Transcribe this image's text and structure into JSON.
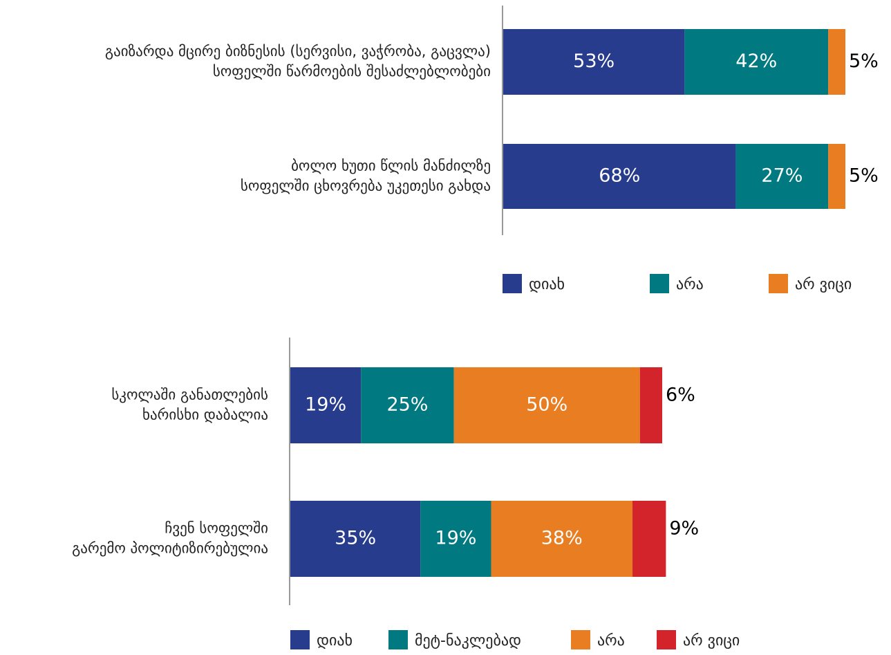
{
  "chart_data": [
    {
      "type": "stacked_bar_horizontal",
      "categories": [
        [
          "გაიზარდა მცირე ბიზნესის (სერვისი, ვაჭრობა, გაცვლა)",
          "სოფელში წარმოების შესაძლებლობები"
        ],
        [
          "ბოლო ხუთი წლის მანძილზე",
          "სოფელში ცხოვრება უკეთესი გახდა"
        ]
      ],
      "series": [
        {
          "name": "დიახ",
          "color": "#283c8e",
          "values": [
            53,
            68
          ],
          "value_labels": [
            "53%",
            "68%"
          ]
        },
        {
          "name": "არა",
          "color": "#007a80",
          "values": [
            42,
            27
          ],
          "value_labels": [
            "42%",
            "27%"
          ]
        },
        {
          "name": "არ ვიცი",
          "color": "#e87d22",
          "values": [
            5,
            5
          ],
          "value_labels": [
            "5%",
            "5%"
          ]
        }
      ],
      "xlim": [
        0,
        100
      ]
    },
    {
      "type": "stacked_bar_horizontal",
      "categories": [
        [
          "სკოლაში განათლების",
          "ხარისხი დაბალია"
        ],
        [
          "ჩვენ სოფელში",
          "გარემო პოლიტიზირებულია"
        ]
      ],
      "series": [
        {
          "name": "დიახ",
          "color": "#283c8e",
          "values": [
            19,
            35
          ],
          "value_labels": [
            "19%",
            "35%"
          ]
        },
        {
          "name": "მეტ-ნაკლებად",
          "color": "#007a80",
          "values": [
            25,
            19
          ],
          "value_labels": [
            "25%",
            "19%"
          ]
        },
        {
          "name": "არა",
          "color": "#e87d22",
          "values": [
            50,
            38
          ],
          "value_labels": [
            "50%",
            "38%"
          ]
        },
        {
          "name": "არ ვიცი",
          "color": "#d3242c",
          "values": [
            6,
            9
          ],
          "value_labels": [
            "6%",
            "9%"
          ]
        }
      ],
      "xlim": [
        0,
        100
      ]
    }
  ]
}
